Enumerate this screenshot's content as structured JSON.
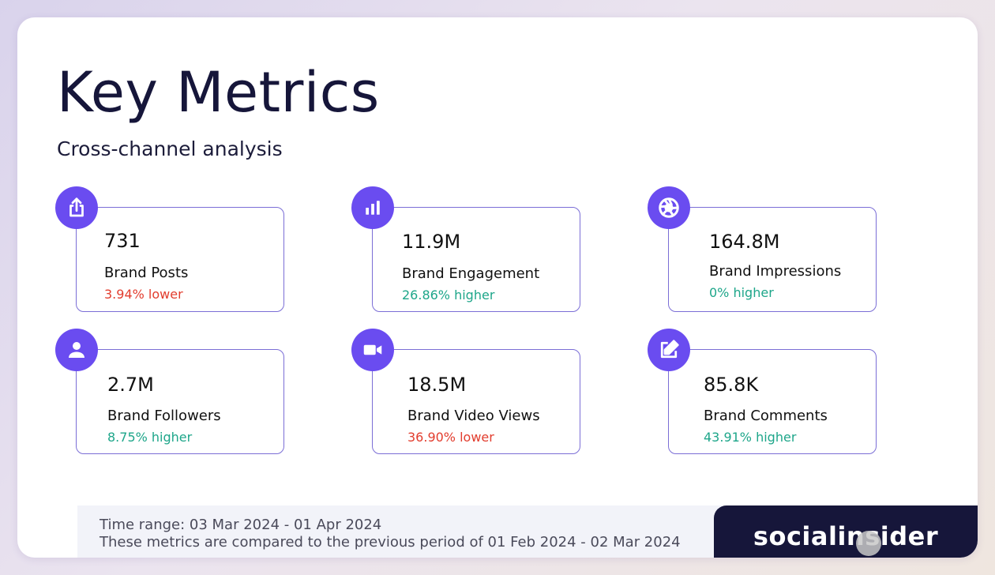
{
  "header": {
    "title": "Key Metrics",
    "subtitle": "Cross-channel analysis"
  },
  "metrics": [
    {
      "value": "731",
      "label": "Brand Posts",
      "change": "3.94% lower",
      "direction": "lower",
      "icon": "share-icon"
    },
    {
      "value": "11.9M",
      "label": "Brand Engagement",
      "change": "26.86% higher",
      "direction": "higher",
      "icon": "bar-chart-icon"
    },
    {
      "value": "164.8M",
      "label": "Brand Impressions",
      "change": "0% higher",
      "direction": "higher",
      "icon": "aperture-icon"
    },
    {
      "value": "2.7M",
      "label": "Brand Followers",
      "change": "8.75% higher",
      "direction": "higher",
      "icon": "user-icon"
    },
    {
      "value": "18.5M",
      "label": "Brand Video Views",
      "change": "36.90% lower",
      "direction": "lower",
      "icon": "video-camera-icon"
    },
    {
      "value": "85.8K",
      "label": "Brand Comments",
      "change": "43.91% higher",
      "direction": "higher",
      "icon": "edit-icon"
    }
  ],
  "footer": {
    "time_range": "Time range: 03 Mar 2024 - 01 Apr 2024",
    "comparison": "These metrics are compared to the previous period of 01 Feb 2024 - 02 Mar 2024"
  },
  "brand": {
    "name": "socialinsider"
  },
  "colors": {
    "accent": "#6a4cf0",
    "border": "#7b6ed6",
    "lower": "#e23d2e",
    "higher": "#1ea68a",
    "dark": "#16163a"
  }
}
